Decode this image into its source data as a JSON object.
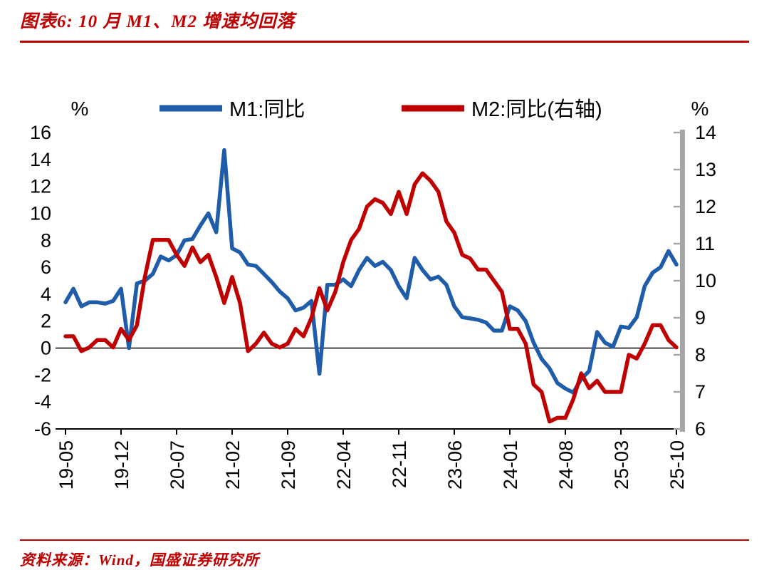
{
  "page": {
    "title": "图表6:  10 月 M1、M2 增速均回落",
    "source": "资料来源：Wind，国盛证券研究所",
    "accent_color": "#C00000",
    "text_color": "#000000",
    "right_axis_bar_color": "#A6A6A6"
  },
  "chart_data": {
    "type": "line",
    "title": "10 月 M1、M2 增速均回落",
    "grid": false,
    "legend_position": "top",
    "left_axis": {
      "label": "%",
      "min": -6,
      "max": 16,
      "ticks": [
        16,
        14,
        12,
        10,
        8,
        6,
        4,
        2,
        0,
        -2,
        -4,
        -6
      ]
    },
    "right_axis": {
      "label": "%",
      "min": 6,
      "max": 14,
      "ticks": [
        14,
        13,
        12,
        11,
        10,
        9,
        8,
        7,
        6
      ]
    },
    "x": [
      "19-05",
      "19-06",
      "19-07",
      "19-08",
      "19-09",
      "19-10",
      "19-11",
      "19-12",
      "20-01",
      "20-02",
      "20-03",
      "20-04",
      "20-05",
      "20-06",
      "20-07",
      "20-08",
      "20-09",
      "20-10",
      "20-11",
      "20-12",
      "21-01",
      "21-02",
      "21-03",
      "21-04",
      "21-05",
      "21-06",
      "21-07",
      "21-08",
      "21-09",
      "21-10",
      "21-11",
      "21-12",
      "22-01",
      "22-02",
      "22-03",
      "22-04",
      "22-05",
      "22-06",
      "22-07",
      "22-08",
      "22-09",
      "22-10",
      "22-11",
      "22-12",
      "23-01",
      "23-02",
      "23-03",
      "23-04",
      "23-05",
      "23-06",
      "23-07",
      "23-08",
      "23-09",
      "23-10",
      "23-11",
      "23-12",
      "24-01",
      "24-02",
      "24-03",
      "24-04",
      "24-05",
      "24-06",
      "24-07",
      "24-08",
      "24-09",
      "24-10",
      "24-11",
      "24-12",
      "25-01",
      "25-02",
      "25-03",
      "25-04",
      "25-05",
      "25-06",
      "25-07",
      "25-08",
      "25-09",
      "25-10"
    ],
    "x_tick_labels": [
      "19-05",
      "19-12",
      "20-07",
      "21-02",
      "21-09",
      "22-04",
      "22-11",
      "23-06",
      "24-01",
      "24-08",
      "25-03",
      "25-10"
    ],
    "series": [
      {
        "name": "M1:同比",
        "axis": "left",
        "color": "#1F5CA9",
        "values": [
          3.4,
          4.4,
          3.1,
          3.4,
          3.4,
          3.3,
          3.5,
          4.4,
          0.0,
          4.8,
          5.0,
          5.5,
          6.8,
          6.5,
          6.9,
          8.0,
          8.1,
          9.1,
          10.0,
          8.6,
          14.7,
          7.4,
          7.1,
          6.2,
          6.1,
          5.5,
          4.9,
          4.2,
          3.7,
          2.8,
          3.0,
          3.5,
          -1.9,
          4.7,
          4.7,
          5.1,
          4.6,
          5.8,
          6.7,
          6.1,
          6.4,
          5.8,
          4.6,
          3.7,
          6.7,
          5.8,
          5.1,
          5.3,
          4.7,
          3.1,
          2.3,
          2.2,
          2.1,
          1.9,
          1.3,
          1.3,
          3.1,
          2.8,
          2.0,
          0.4,
          -0.8,
          -1.5,
          -2.6,
          -3.0,
          -3.3,
          -2.3,
          -1.7,
          1.2,
          0.4,
          0.1,
          1.6,
          1.5,
          2.3,
          4.6,
          5.6,
          6.0,
          7.2,
          6.2
        ]
      },
      {
        "name": "M2:同比(右轴)",
        "axis": "right",
        "color": "#C00000",
        "values": [
          8.5,
          8.5,
          8.1,
          8.2,
          8.4,
          8.4,
          8.2,
          8.7,
          8.4,
          8.8,
          10.1,
          11.1,
          11.1,
          11.1,
          10.7,
          10.4,
          10.9,
          10.5,
          10.7,
          10.1,
          9.4,
          10.1,
          9.4,
          8.1,
          8.3,
          8.6,
          8.3,
          8.2,
          8.3,
          8.7,
          8.5,
          9.0,
          9.8,
          9.2,
          9.7,
          10.5,
          11.1,
          11.4,
          12.0,
          12.2,
          12.1,
          11.8,
          12.4,
          11.8,
          12.6,
          12.9,
          12.7,
          12.4,
          11.6,
          11.3,
          10.7,
          10.6,
          10.3,
          10.3,
          10.0,
          9.7,
          8.7,
          8.7,
          8.3,
          7.2,
          7.0,
          6.2,
          6.3,
          6.3,
          6.8,
          7.5,
          7.1,
          7.3,
          7.0,
          7.0,
          7.0,
          8.0,
          7.9,
          8.3,
          8.8,
          8.8,
          8.4,
          8.2
        ]
      }
    ]
  }
}
